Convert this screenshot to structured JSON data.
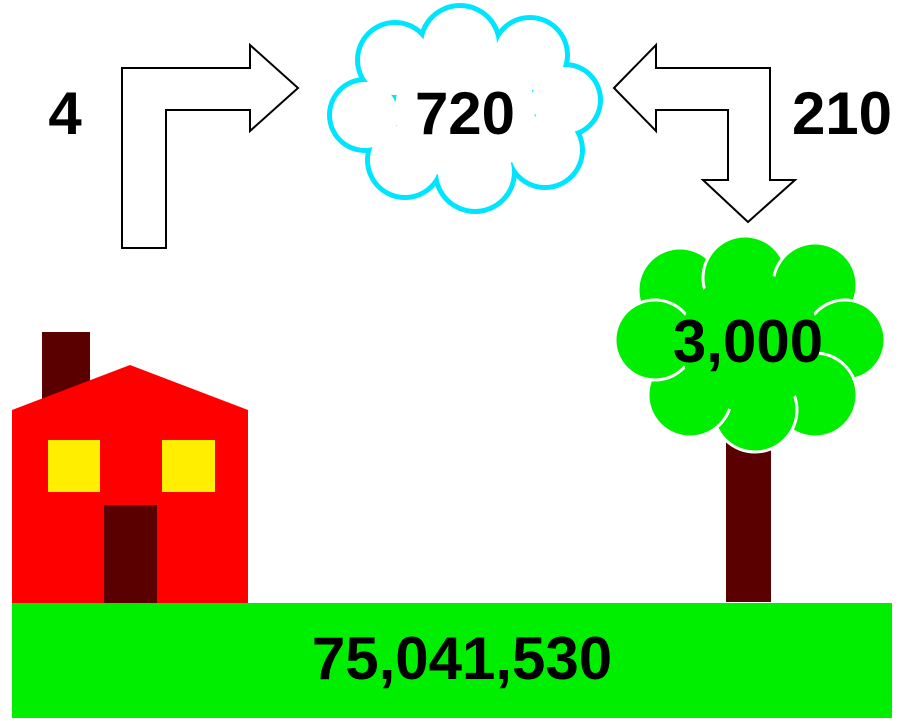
{
  "labels": {
    "left_arrow": "4",
    "cloud": "720",
    "right_arrow": "210",
    "tree": "3,000",
    "ground": "75,041,530"
  }
}
